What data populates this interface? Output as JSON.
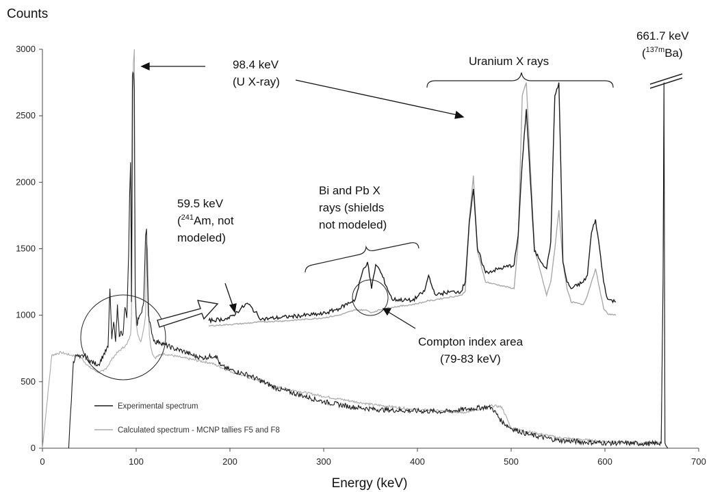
{
  "chart_data": {
    "type": "line",
    "ylabel": "Counts",
    "xlabel": "Energy (keV)",
    "xlim": [
      0,
      700
    ],
    "ylim": [
      0,
      3000
    ],
    "x_ticks": [
      0,
      100,
      200,
      300,
      400,
      500,
      600,
      700
    ],
    "y_ticks": [
      0,
      500,
      1000,
      1500,
      2000,
      2500,
      3000
    ],
    "grid": false,
    "legend_position": "bottom-left",
    "series": [
      {
        "name": "Experimental spectrum",
        "color": "#1a1a1a",
        "x": [
          28,
          33,
          36,
          40,
          45,
          50,
          55,
          60,
          65,
          70,
          72,
          74,
          76,
          78,
          80,
          82,
          84,
          86,
          88,
          90,
          92,
          93,
          94,
          95,
          96,
          97,
          98,
          99,
          100,
          101,
          102,
          104,
          106,
          108,
          110,
          111,
          112,
          113,
          114,
          116,
          118,
          120,
          125,
          130,
          140,
          150,
          160,
          170,
          180,
          185,
          190,
          200,
          220,
          250,
          280,
          300,
          330,
          360,
          400,
          430,
          460,
          475,
          480,
          490,
          500,
          520,
          550,
          580,
          600,
          620,
          640,
          650,
          660,
          662,
          663,
          664,
          665,
          667
        ],
        "y": [
          0,
          650,
          700,
          680,
          700,
          660,
          640,
          630,
          700,
          760,
          1200,
          820,
          950,
          800,
          1080,
          840,
          880,
          860,
          1060,
          980,
          1450,
          1900,
          2150,
          1100,
          2800,
          2820,
          2700,
          1150,
          1000,
          920,
          980,
          1000,
          1020,
          1100,
          1600,
          1650,
          1300,
          1000,
          950,
          900,
          830,
          800,
          800,
          780,
          750,
          730,
          700,
          680,
          690,
          700,
          620,
          590,
          550,
          450,
          390,
          350,
          310,
          290,
          280,
          275,
          300,
          310,
          300,
          200,
          150,
          100,
          60,
          45,
          40,
          38,
          35,
          35,
          40,
          1250,
          2750,
          40,
          20,
          0
        ]
      },
      {
        "name": "Calculated spectrum - MCNP tallies F5 and F8",
        "color": "#a8a8a8",
        "x": [
          0,
          10,
          20,
          30,
          40,
          50,
          60,
          65,
          70,
          75,
          80,
          85,
          90,
          94,
          95,
          96,
          97,
          98,
          99,
          100,
          102,
          105,
          108,
          110,
          111,
          112,
          114,
          116,
          118,
          120,
          125,
          130,
          150,
          180,
          200,
          250,
          300,
          350,
          400,
          450,
          470,
          480,
          490,
          500,
          550,
          600,
          650,
          660,
          662,
          663,
          664,
          667
        ],
        "y": [
          0,
          700,
          720,
          700,
          690,
          610,
          570,
          580,
          620,
          680,
          720,
          750,
          780,
          850,
          1000,
          1800,
          2900,
          3000,
          1200,
          930,
          850,
          800,
          900,
          1000,
          1550,
          1500,
          850,
          750,
          700,
          680,
          700,
          710,
          680,
          640,
          580,
          460,
          390,
          330,
          290,
          270,
          300,
          320,
          310,
          150,
          80,
          50,
          35,
          35,
          1250,
          2750,
          35,
          0
        ]
      }
    ],
    "inset": {
      "description_note": "",
      "x_kev": [
        50,
        55,
        59.5,
        63,
        70,
        78,
        82,
        86,
        88,
        89,
        90,
        91,
        92,
        95,
        100,
        103,
        104,
        105,
        106,
        108,
        112,
        113,
        114,
        115,
        116,
        118,
        125,
        126,
        127,
        128,
        130,
        133,
        134,
        135,
        136,
        137,
        138,
        139,
        142,
        143,
        144,
        145,
        146,
        147,
        148,
        150
      ],
      "experimental": [
        960,
        975,
        1090,
        970,
        990,
        1010,
        1050,
        1120,
        1350,
        1400,
        1200,
        1380,
        1340,
        1120,
        1110,
        1180,
        1300,
        1200,
        1150,
        1170,
        1180,
        1250,
        1700,
        1950,
        1500,
        1320,
        1380,
        1600,
        2150,
        2550,
        1480,
        1350,
        1550,
        2650,
        2750,
        1400,
        1250,
        1200,
        1250,
        1300,
        1620,
        1720,
        1500,
        1250,
        1120,
        1100
      ],
      "calculated": [
        920,
        930,
        940,
        950,
        960,
        980,
        1000,
        1040,
        1040,
        1035,
        1020,
        1030,
        1040,
        1060,
        1080,
        1100,
        1110,
        1110,
        1120,
        1130,
        1150,
        1180,
        1720,
        2050,
        1480,
        1250,
        1200,
        1550,
        2650,
        2750,
        1500,
        1150,
        1250,
        1500,
        1790,
        1400,
        1200,
        1100,
        1080,
        1150,
        1250,
        1350,
        1200,
        1050,
        1010,
        1000
      ]
    }
  },
  "annotations": {
    "u_xray_line1": "98.4 keV",
    "u_xray_line2": "(U X-ray)",
    "uranium_xrays": "Uranium X rays",
    "ba_energy": "661.7 keV",
    "ba_open": "(",
    "ba_sup": "137m",
    "ba_elem": "Ba)",
    "am_line1": "59.5 keV",
    "am_line2_open": "(",
    "am_line2_sup": "241",
    "am_line2_rest": "Am, not",
    "am_line3": "modeled)",
    "bipb_line1": "Bi and Pb X",
    "bipb_line2": "rays (shields",
    "bipb_line3": "not modeled)",
    "compton_line1": "Compton index area",
    "compton_line2": "(79-83 keV)"
  }
}
